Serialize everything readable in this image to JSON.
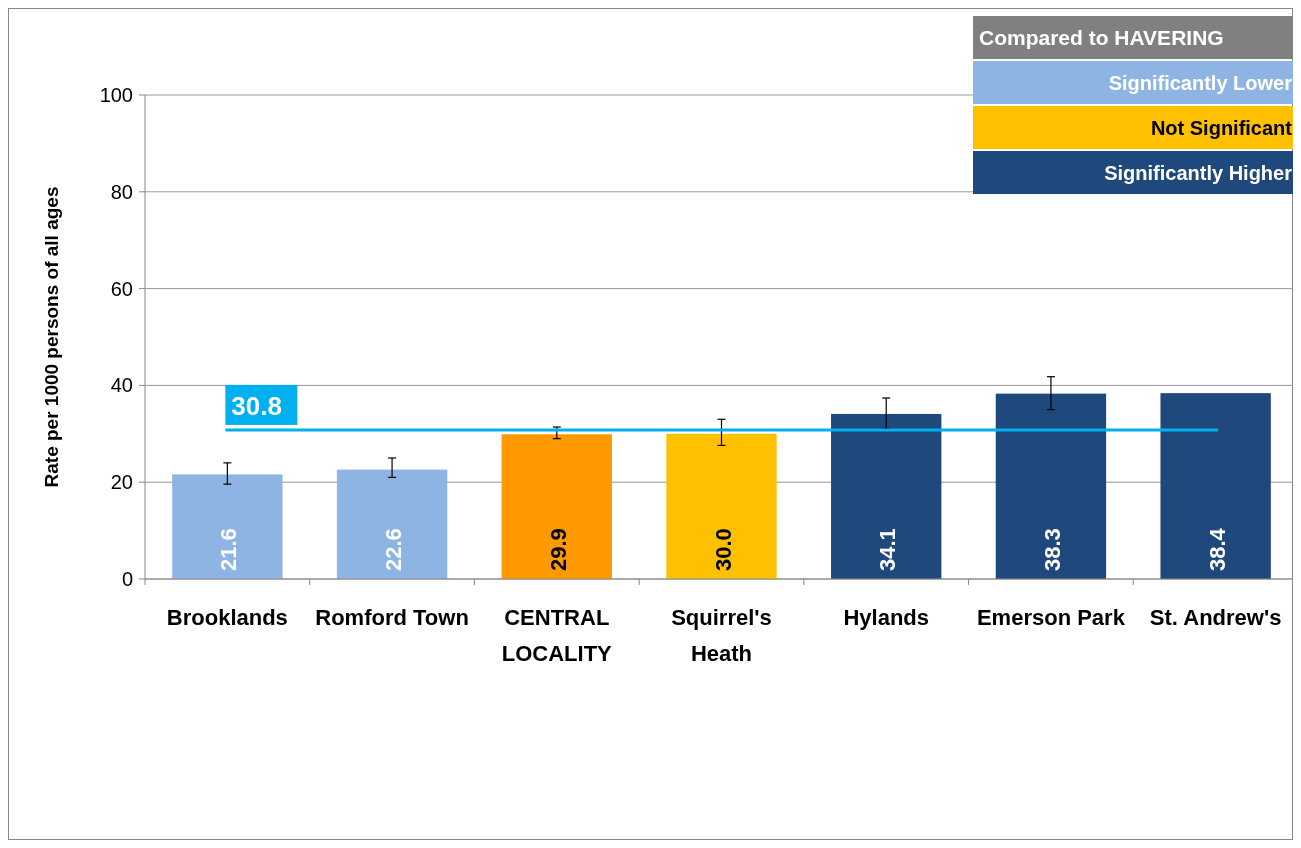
{
  "chart_data": {
    "type": "bar",
    "ylabel": "Rate per 1000 persons  of all ages",
    "legend_title": "Compared to HAVERING",
    "legend": "top right",
    "categories": [
      "Brooklands",
      "Romford Town",
      "CENTRAL LOCALITY",
      "Squirrel's Heath",
      "Hylands",
      "Emerson Park",
      "St. Andrew's"
    ],
    "series": [
      {
        "name": "Significantly Lower",
        "color": "#8db4e2",
        "values": [
          21.6,
          22.6,
          null,
          null,
          null,
          null,
          null
        ],
        "value_labels": [
          "21.6",
          "22.6",
          null,
          null,
          null,
          null,
          null
        ],
        "errors": [
          [
            19.6,
            24.0
          ],
          [
            21.0,
            25.0
          ],
          null,
          null,
          null,
          null,
          null
        ]
      },
      {
        "color": "#ff9900",
        "values": [
          null,
          null,
          29.9,
          null,
          null,
          null,
          null
        ],
        "value_labels": [
          null,
          null,
          "29.9",
          null,
          null,
          null,
          null
        ],
        "errors": [
          null,
          null,
          [
            29.0,
            31.4
          ],
          null,
          null,
          null,
          null
        ]
      },
      {
        "name": "Not Significant",
        "color": "#ffc000",
        "values": [
          null,
          null,
          null,
          30.0,
          null,
          null,
          null
        ],
        "value_labels": [
          null,
          null,
          null,
          "30.0",
          null,
          null,
          null
        ],
        "errors": [
          null,
          null,
          null,
          [
            27.6,
            33.0
          ],
          null,
          null,
          null
        ]
      },
      {
        "name": "Significantly Higher",
        "color": "#1f497d",
        "values": [
          null,
          null,
          null,
          null,
          34.1,
          38.3,
          38.4
        ],
        "value_labels": [
          null,
          null,
          null,
          null,
          "34.1",
          "38.3",
          "38.4"
        ],
        "errors": [
          null,
          null,
          null,
          null,
          [
            31.0,
            37.4
          ],
          [
            35.0,
            41.8
          ],
          null
        ]
      }
    ],
    "ylim": [
      0,
      100
    ],
    "yticks": [
      0,
      20,
      40,
      60,
      80,
      100
    ],
    "grid": "y",
    "ref_lines": [
      {
        "axis": "y",
        "value": 30.8,
        "label": "30.8",
        "color": "#00b0f0"
      }
    ]
  }
}
